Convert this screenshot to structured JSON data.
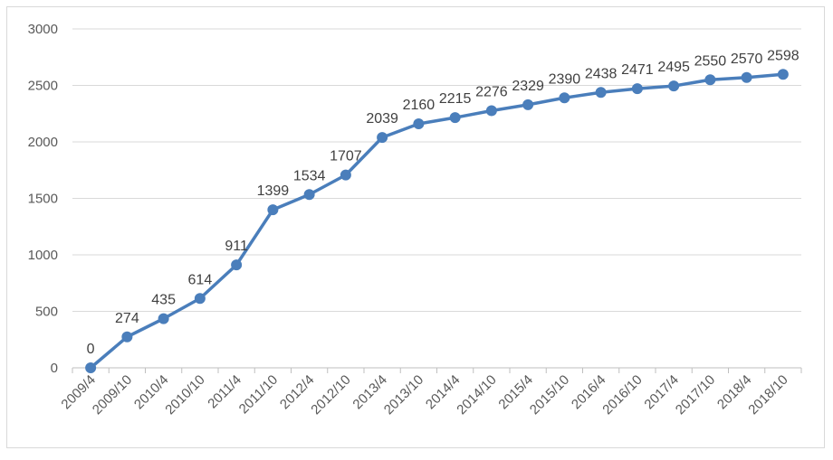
{
  "chart_data": {
    "type": "line",
    "title": "",
    "xlabel": "",
    "ylabel": "",
    "categories": [
      "2009/4",
      "2009/10",
      "2010/4",
      "2010/10",
      "2011/4",
      "2011/10",
      "2012/4",
      "2012/10",
      "2013/4",
      "2013/10",
      "2014/4",
      "2014/10",
      "2015/4",
      "2015/10",
      "2016/4",
      "2016/10",
      "2017/4",
      "2017/10",
      "2018/4",
      "2018/10"
    ],
    "series": [
      {
        "values": [
          0,
          274,
          435,
          614,
          911,
          1399,
          1534,
          1707,
          2039,
          2160,
          2215,
          2276,
          2329,
          2390,
          2438,
          2471,
          2495,
          2550,
          2570,
          2598
        ]
      }
    ],
    "ylim": [
      0,
      3000
    ],
    "yticks": [
      0,
      500,
      1000,
      1500,
      2000,
      2500,
      3000
    ],
    "grid": true,
    "legend": "none",
    "colors": {
      "line": "#4a7ebb",
      "marker": "#4a7ebb",
      "grid": "#d9d9d9",
      "axis": "#bfbfbf"
    }
  }
}
